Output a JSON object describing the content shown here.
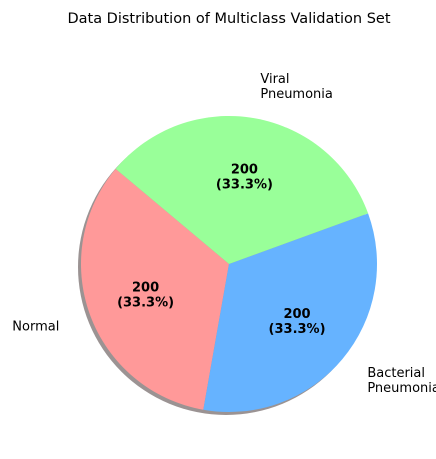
{
  "chart_data": {
    "type": "pie",
    "title": "Data Distribution of Multiclass Validation Set",
    "categories": [
      "Normal",
      "Bacterial Pneumonia",
      "Viral Pneumonia"
    ],
    "label_lines": [
      [
        "Normal"
      ],
      [
        "Bacterial",
        "Pneumonia"
      ],
      [
        "Viral",
        "Pneumonia"
      ]
    ],
    "values": [
      200,
      200,
      200
    ],
    "data_labels": [
      [
        "200",
        "(33.3%)"
      ],
      [
        "200",
        "(33.3%)"
      ],
      [
        "200",
        "(33.3%)"
      ]
    ],
    "colors": [
      "#ff9999",
      "#66b3ff",
      "#99ff99"
    ],
    "start_angle_deg": 140,
    "shadow": true,
    "legend": "none"
  }
}
